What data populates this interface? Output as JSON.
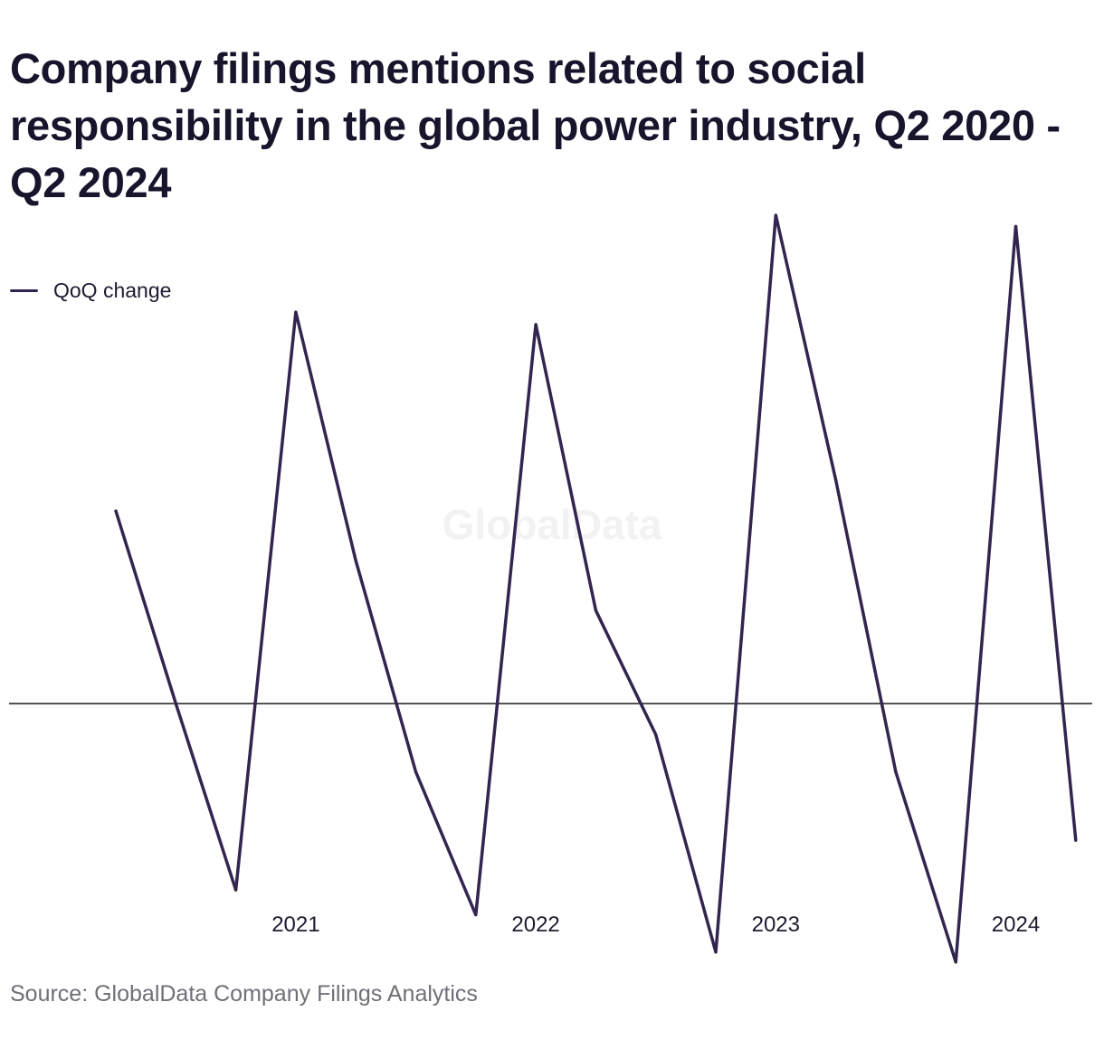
{
  "title": "Company filings mentions related to social responsibility in the global power industry, Q2 2020 - Q2 2024",
  "legend": {
    "label": "QoQ change",
    "color": "#33254f"
  },
  "watermark": "GlobalData",
  "source": "Source: GlobalData Company Filings Analytics",
  "chart_data": {
    "type": "line",
    "title": "Company filings mentions related to social responsibility in the global power industry, Q2 2020 - Q2 2024",
    "xlabel": "",
    "ylabel": "",
    "grid": false,
    "legend_position": "top-left",
    "zero_line": true,
    "x": [
      "Q2 2020",
      "Q3 2020",
      "Q4 2020",
      "Q1 2021",
      "Q2 2021",
      "Q3 2021",
      "Q4 2021",
      "Q1 2022",
      "Q2 2022",
      "Q3 2022",
      "Q4 2022",
      "Q1 2023",
      "Q2 2023",
      "Q3 2023",
      "Q4 2023",
      "Q1 2024",
      "Q2 2024"
    ],
    "x_tick_labels": [
      {
        "at": "Q1 2021",
        "label": "2021"
      },
      {
        "at": "Q1 2022",
        "label": "2022"
      },
      {
        "at": "Q1 2023",
        "label": "2023"
      },
      {
        "at": "Q1 2024",
        "label": "2024"
      }
    ],
    "ylim": [
      -22,
      38
    ],
    "series": [
      {
        "name": "QoQ change",
        "color": "#33254f",
        "values": [
          15.5,
          0.0,
          -15.0,
          31.5,
          11.5,
          -5.5,
          -17.0,
          30.5,
          7.5,
          -2.5,
          -20.0,
          39.3,
          18.0,
          -5.5,
          -20.8,
          38.4,
          -11.0
        ]
      }
    ]
  }
}
